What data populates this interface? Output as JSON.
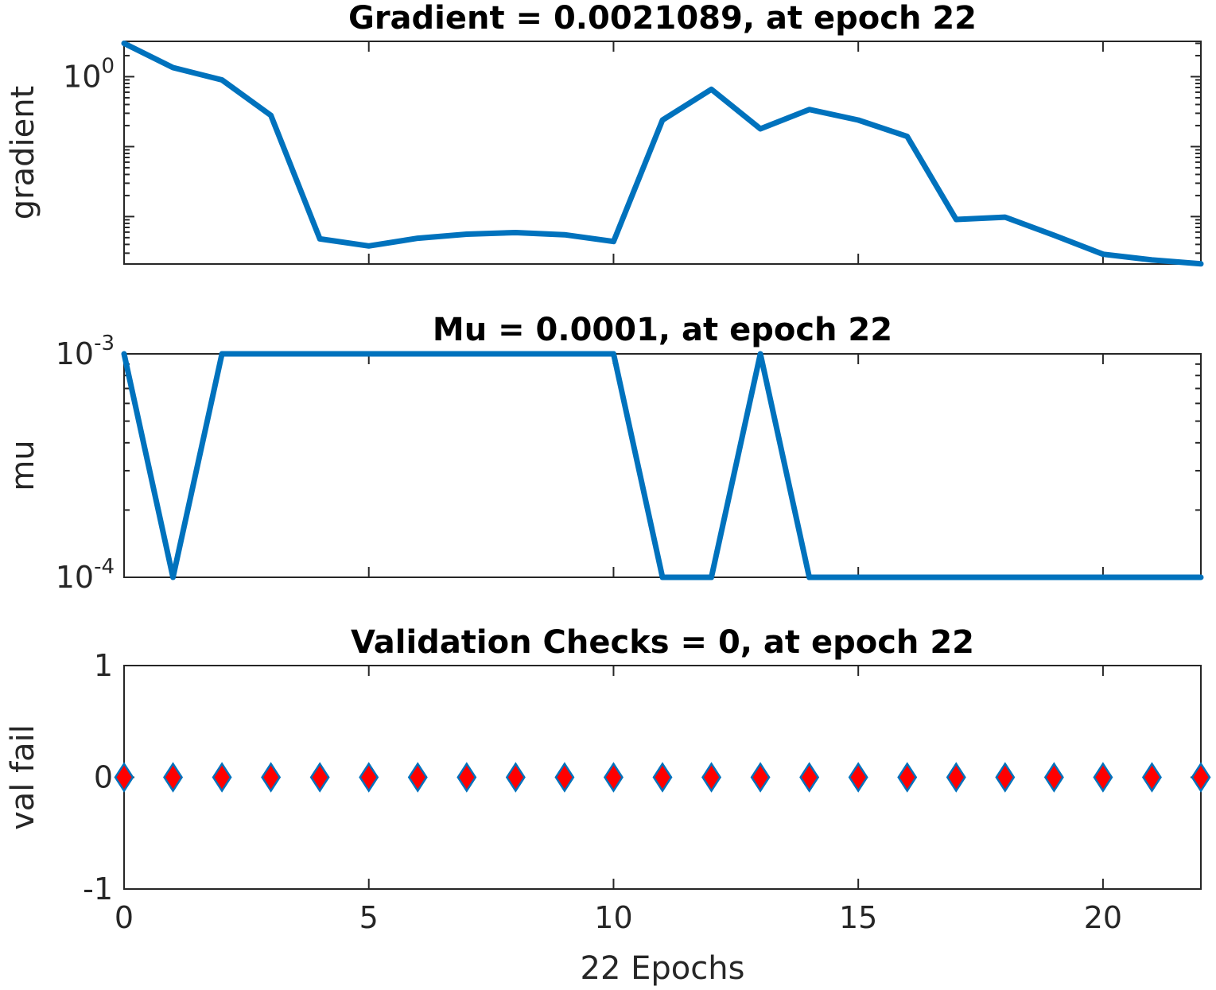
{
  "chart_data": [
    {
      "type": "line",
      "title": "Gradient = 0.0021089, at epoch 22",
      "ylabel": "gradient",
      "xlabel": "",
      "yscale": "log",
      "xlim": [
        0,
        22
      ],
      "ylim": [
        0.0021,
        3.2
      ],
      "yticks": [
        {
          "value": 1,
          "base": "10",
          "exp": "0"
        }
      ],
      "grid": false,
      "color": "#0072BD",
      "x": [
        0,
        1,
        2,
        3,
        4,
        5,
        6,
        7,
        8,
        9,
        10,
        11,
        12,
        13,
        14,
        15,
        16,
        17,
        18,
        19,
        20,
        21,
        22
      ],
      "values": [
        3.0,
        1.35,
        0.9,
        0.28,
        0.0048,
        0.0038,
        0.0049,
        0.0056,
        0.0059,
        0.0055,
        0.0044,
        0.24,
        0.66,
        0.18,
        0.34,
        0.24,
        0.14,
        0.0091,
        0.0098,
        0.0054,
        0.0029,
        0.0024,
        0.0021089
      ]
    },
    {
      "type": "line",
      "title": "Mu = 0.0001, at epoch 22",
      "ylabel": "mu",
      "xlabel": "",
      "yscale": "log",
      "xlim": [
        0,
        22
      ],
      "ylim": [
        0.0001,
        0.001
      ],
      "yticks": [
        {
          "value": 0.001,
          "base": "10",
          "exp": "-3"
        },
        {
          "value": 0.0001,
          "base": "10",
          "exp": "-4"
        }
      ],
      "grid": false,
      "color": "#0072BD",
      "x": [
        0,
        1,
        2,
        3,
        4,
        5,
        6,
        7,
        8,
        9,
        10,
        11,
        12,
        13,
        14,
        15,
        16,
        17,
        18,
        19,
        20,
        21,
        22
      ],
      "values": [
        0.001,
        0.0001,
        0.001,
        0.001,
        0.001,
        0.001,
        0.001,
        0.001,
        0.001,
        0.001,
        0.001,
        0.0001,
        0.0001,
        0.001,
        0.0001,
        0.0001,
        0.0001,
        0.0001,
        0.0001,
        0.0001,
        0.0001,
        0.0001,
        0.0001
      ]
    },
    {
      "type": "scatter",
      "title": "Validation Checks = 0, at epoch 22",
      "ylabel": "val fail",
      "xlabel": "22 Epochs",
      "yscale": "linear",
      "xlim": [
        0,
        22
      ],
      "ylim": [
        -1,
        1
      ],
      "yticks": [
        {
          "value": 1,
          "label": "1"
        },
        {
          "value": 0,
          "label": "0"
        },
        {
          "value": -1,
          "label": "-1"
        }
      ],
      "xticks": [
        0,
        5,
        10,
        15,
        20
      ],
      "grid": false,
      "marker": "diamond",
      "marker_fill": "#FF0000",
      "marker_edge": "#0072BD",
      "x": [
        0,
        1,
        2,
        3,
        4,
        5,
        6,
        7,
        8,
        9,
        10,
        11,
        12,
        13,
        14,
        15,
        16,
        17,
        18,
        19,
        20,
        21,
        22
      ],
      "values": [
        0,
        0,
        0,
        0,
        0,
        0,
        0,
        0,
        0,
        0,
        0,
        0,
        0,
        0,
        0,
        0,
        0,
        0,
        0,
        0,
        0,
        0,
        0
      ]
    }
  ]
}
